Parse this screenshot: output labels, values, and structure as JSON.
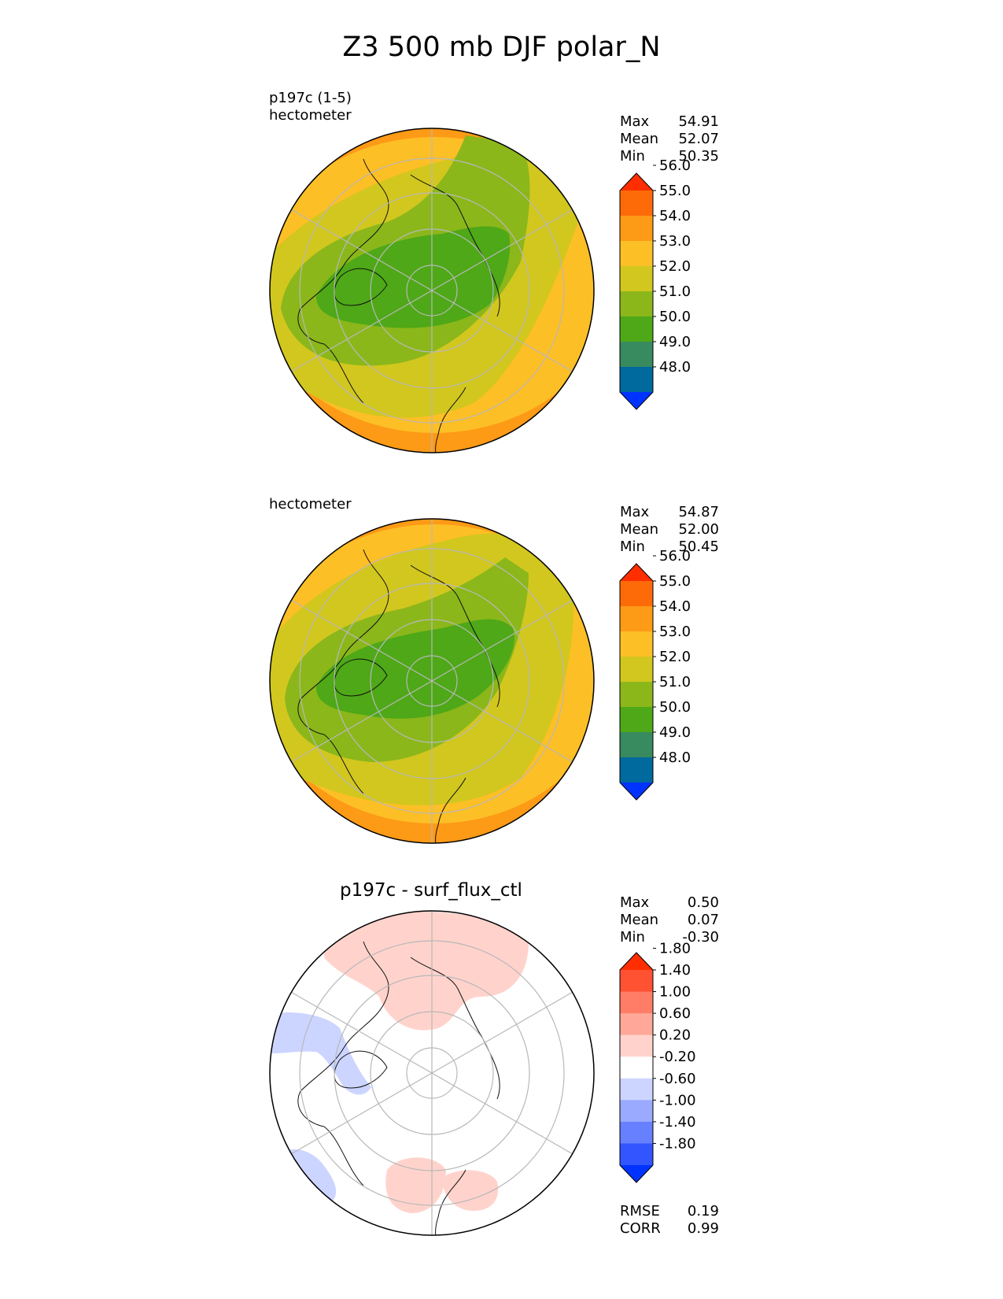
{
  "title": "Z3 500 mb DJF polar_N",
  "panels": [
    {
      "label_line1": "p197c (1-5)",
      "label_line2": "hectometer",
      "stats": [
        {
          "name": "Max",
          "value": "54.91"
        },
        {
          "name": "Mean",
          "value": "52.07"
        },
        {
          "name": "Min",
          "value": "50.35"
        }
      ],
      "colorbar": {
        "colors": [
          "#0033ff",
          "#00699e",
          "#388a5f",
          "#4ea817",
          "#8bb71b",
          "#d2c71e",
          "#fdbf26",
          "#fd9a16",
          "#fd6b08",
          "#ff2e00"
        ],
        "ticks": [
          "48.0",
          "49.0",
          "50.0",
          "51.0",
          "52.0",
          "53.0",
          "54.0",
          "55.0",
          "56.0"
        ]
      }
    },
    {
      "label_line1": "",
      "label_line2": "hectometer",
      "stats": [
        {
          "name": "Max",
          "value": "54.87"
        },
        {
          "name": "Mean",
          "value": "52.00"
        },
        {
          "name": "Min",
          "value": "50.45"
        }
      ],
      "colorbar": {
        "colors": [
          "#0033ff",
          "#00699e",
          "#388a5f",
          "#4ea817",
          "#8bb71b",
          "#d2c71e",
          "#fdbf26",
          "#fd9a16",
          "#fd6b08",
          "#ff2e00"
        ],
        "ticks": [
          "48.0",
          "49.0",
          "50.0",
          "51.0",
          "52.0",
          "53.0",
          "54.0",
          "55.0",
          "56.0"
        ]
      }
    },
    {
      "title": "p197c - surf_flux_ctl",
      "stats": [
        {
          "name": "Max",
          "value": "0.50"
        },
        {
          "name": "Mean",
          "value": "0.07"
        },
        {
          "name": "Min",
          "value": "-0.30"
        }
      ],
      "extra_stats": [
        {
          "name": "RMSE",
          "value": "0.19"
        },
        {
          "name": "CORR",
          "value": "0.99"
        }
      ],
      "colorbar": {
        "colors": [
          "#0033ff",
          "#3355ff",
          "#6680ff",
          "#99aaff",
          "#ccd5ff",
          "#ffffff",
          "#ffd3cc",
          "#ffa899",
          "#ff7d66",
          "#ff5233",
          "#ff2e00"
        ],
        "ticks": [
          "-1.80",
          "-1.40",
          "-1.00",
          "-0.60",
          "-0.20",
          "0.20",
          "0.60",
          "1.00",
          "1.40",
          "1.80"
        ]
      }
    }
  ],
  "chart_data": [
    {
      "type": "heatmap",
      "title": "",
      "subtitle": "p197c (1-5)",
      "units": "hectometer",
      "projection": "north polar stereographic",
      "field_range": [
        50.35,
        54.91
      ],
      "levels": [
        48.0,
        49.0,
        50.0,
        51.0,
        52.0,
        53.0,
        54.0,
        55.0,
        56.0
      ],
      "stats": {
        "max": 54.91,
        "mean": 52.07,
        "min": 50.35
      }
    },
    {
      "type": "heatmap",
      "title": "",
      "units": "hectometer",
      "projection": "north polar stereographic",
      "field_range": [
        50.45,
        54.87
      ],
      "levels": [
        48.0,
        49.0,
        50.0,
        51.0,
        52.0,
        53.0,
        54.0,
        55.0,
        56.0
      ],
      "stats": {
        "max": 54.87,
        "mean": 52.0,
        "min": 50.45
      }
    },
    {
      "type": "heatmap",
      "title": "p197c - surf_flux_ctl",
      "projection": "north polar stereographic",
      "field_range": [
        -0.3,
        0.5
      ],
      "levels": [
        -1.8,
        -1.4,
        -1.0,
        -0.6,
        -0.2,
        0.2,
        0.6,
        1.0,
        1.4,
        1.8
      ],
      "stats": {
        "max": 0.5,
        "mean": 0.07,
        "min": -0.3,
        "rmse": 0.19,
        "corr": 0.99
      }
    }
  ]
}
